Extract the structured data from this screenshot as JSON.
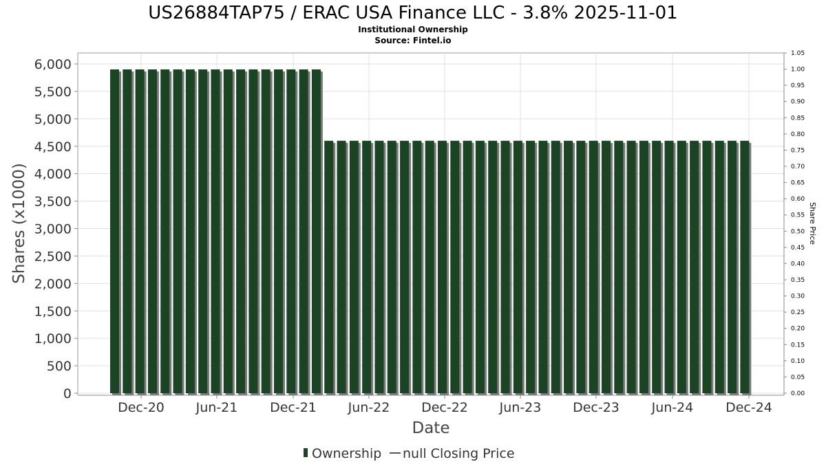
{
  "chart_data": {
    "type": "bar",
    "title": "US26884TAP75 / ERAC USA Finance LLC - 3.8% 2025-11-01",
    "subtitle": "Institutional Ownership",
    "source": "Source: Fintel.io",
    "xlabel": "Date",
    "ylabel": "Shares (x1000)",
    "y2label": "Share Price",
    "ylim": [
      0,
      6000
    ],
    "y2lim": [
      0,
      1.05
    ],
    "y_ticks": [
      "0",
      "500",
      "1,000",
      "1,500",
      "2,000",
      "2,500",
      "3,000",
      "3,500",
      "4,000",
      "4,500",
      "5,000",
      "5,500",
      "6,000"
    ],
    "y2_ticks": [
      "0.00",
      "0.05",
      "0.10",
      "0.15",
      "0.20",
      "0.25",
      "0.30",
      "0.35",
      "0.40",
      "0.45",
      "0.50",
      "0.55",
      "0.60",
      "0.65",
      "0.70",
      "0.75",
      "0.80",
      "0.85",
      "0.90",
      "0.95",
      "1.00",
      "1.05"
    ],
    "x_ticks": [
      "Dec-20",
      "Jun-21",
      "Dec-21",
      "Jun-22",
      "Dec-22",
      "Jun-23",
      "Dec-23",
      "Jun-24",
      "Dec-24"
    ],
    "grid": true,
    "legend_position": "bottom-center",
    "legend": [
      "Ownership",
      "null Closing Price"
    ],
    "colors": {
      "bar": "#1a4423",
      "bar_shadow": "#7a7a7a",
      "grid": "#e0e0e0",
      "axis": "#888888"
    },
    "series": [
      {
        "name": "Ownership",
        "values": [
          5900,
          5900,
          5900,
          5900,
          5900,
          5900,
          5900,
          5900,
          5900,
          5900,
          5900,
          5900,
          5900,
          5900,
          5900,
          5900,
          5900,
          4600,
          4600,
          4600,
          4600,
          4600,
          4600,
          4600,
          4600,
          4600,
          4600,
          4600,
          4600,
          4600,
          4600,
          4600,
          4600,
          4600,
          4600,
          4600,
          4600,
          4600,
          4600,
          4600,
          4600,
          4600,
          4600,
          4600,
          4600,
          4600,
          4600,
          4600,
          4600,
          4600,
          4600
        ]
      },
      {
        "name": "null Closing Price",
        "values": []
      }
    ]
  }
}
